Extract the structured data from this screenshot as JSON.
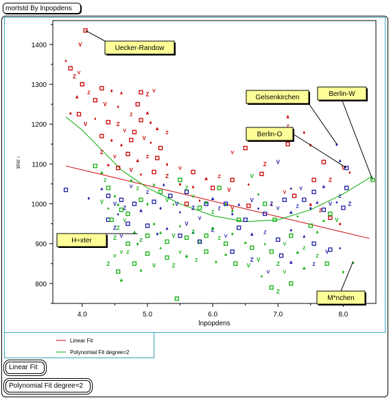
{
  "title": "mortstd By lnpopdens",
  "buttons": {
    "linear": "Linear Fit",
    "poly": "Polynomial Fit degree=2"
  },
  "colors": {
    "frame": "#35a6c0",
    "linear": "#cc0000",
    "poly": "#00aa00",
    "red": "#cc0000",
    "blue": "#1a1aa6",
    "green": "#10b010",
    "label_bg": "#ffff99"
  },
  "chart_data": {
    "type": "scatter",
    "title": "",
    "xlabel": "lnpopdens",
    "ylabel": "↑ mst",
    "xlim": [
      3.55,
      8.5
    ],
    "ylim": [
      750,
      1460
    ],
    "xticks": [
      4.0,
      5.0,
      6.0,
      7.0,
      8.0
    ],
    "xtick_labels": [
      "4.0",
      "5.0",
      "6.0",
      "7.0",
      "8.0"
    ],
    "yticks": [
      800,
      900,
      1000,
      1100,
      1200,
      1300,
      1400
    ],
    "ytick_labels": [
      "800",
      "900",
      "1000",
      "1100",
      "1200",
      "1300",
      "1400"
    ],
    "grid": false,
    "legend": "bottom-left",
    "legend_entries": [
      {
        "name": "Linear Fit",
        "color": "#cc0000"
      },
      {
        "name": "Polynomial Fit degree=2",
        "color": "#00aa00"
      }
    ],
    "fits": [
      {
        "name": "Linear Fit",
        "points": [
          [
            3.75,
            1095
          ],
          [
            8.4,
            913
          ]
        ]
      },
      {
        "name": "Polynomial Fit degree=2",
        "points": [
          [
            3.75,
            1218
          ],
          [
            4.0,
            1185
          ],
          [
            4.3,
            1135
          ],
          [
            4.6,
            1085
          ],
          [
            5.0,
            1040
          ],
          [
            5.5,
            1000
          ],
          [
            6.0,
            970
          ],
          [
            6.5,
            955
          ],
          [
            7.0,
            960
          ],
          [
            7.5,
            985
          ],
          [
            8.0,
            1025
          ],
          [
            8.45,
            1070
          ]
        ]
      }
    ],
    "series": [
      {
        "name": "",
        "color": "#cc0000",
        "points": [
          [
            4.05,
            1435
          ],
          [
            3.97,
            1400
          ],
          [
            3.75,
            1360
          ],
          [
            3.82,
            1340
          ],
          [
            3.88,
            1320
          ],
          [
            3.95,
            1330
          ],
          [
            4.0,
            1300
          ],
          [
            3.92,
            1270
          ],
          [
            4.1,
            1280
          ],
          [
            4.3,
            1290
          ],
          [
            4.45,
            1285
          ],
          [
            4.6,
            1280
          ],
          [
            4.2,
            1260
          ],
          [
            4.35,
            1250
          ],
          [
            4.55,
            1245
          ],
          [
            4.9,
            1280
          ],
          [
            5.0,
            1275
          ],
          [
            5.1,
            1285
          ],
          [
            4.85,
            1250
          ],
          [
            5.0,
            1230
          ],
          [
            4.75,
            1225
          ],
          [
            4.9,
            1210
          ],
          [
            5.05,
            1205
          ],
          [
            3.82,
            1230
          ],
          [
            3.95,
            1225
          ],
          [
            4.05,
            1200
          ],
          [
            4.2,
            1215
          ],
          [
            4.4,
            1205
          ],
          [
            4.55,
            1200
          ],
          [
            4.65,
            1185
          ],
          [
            4.8,
            1180
          ],
          [
            5.15,
            1190
          ],
          [
            5.3,
            1180
          ],
          [
            4.3,
            1170
          ],
          [
            4.45,
            1160
          ],
          [
            4.6,
            1150
          ],
          [
            4.75,
            1160
          ],
          [
            4.95,
            1165
          ],
          [
            5.05,
            1155
          ],
          [
            5.2,
            1140
          ],
          [
            4.3,
            1130
          ],
          [
            4.5,
            1120
          ],
          [
            4.7,
            1125
          ],
          [
            4.85,
            1110
          ],
          [
            5.0,
            1120
          ],
          [
            5.15,
            1115
          ],
          [
            5.3,
            1100
          ],
          [
            4.4,
            1100
          ],
          [
            4.55,
            1090
          ],
          [
            4.75,
            1085
          ],
          [
            4.9,
            1075
          ],
          [
            5.1,
            1080
          ],
          [
            5.3,
            1070
          ],
          [
            5.5,
            1090
          ],
          [
            5.7,
            1080
          ],
          [
            5.9,
            1065
          ],
          [
            6.1,
            1070
          ],
          [
            6.3,
            1060
          ],
          [
            5.5,
            1050
          ],
          [
            5.7,
            1045
          ],
          [
            6.0,
            1040
          ],
          [
            6.25,
            1035
          ],
          [
            6.55,
            1050
          ],
          [
            6.75,
            1075
          ],
          [
            6.8,
            1100
          ],
          [
            6.3,
            1130
          ],
          [
            6.5,
            1140
          ],
          [
            7.15,
            1220
          ],
          [
            7.15,
            1195
          ],
          [
            7.15,
            1150
          ],
          [
            7.4,
            1180
          ],
          [
            7.5,
            1150
          ],
          [
            7.7,
            1105
          ],
          [
            8.0,
            1090
          ],
          [
            8.1,
            1080
          ],
          [
            7.55,
            1060
          ],
          [
            7.8,
            1060
          ],
          [
            7.1,
            1030
          ],
          [
            7.25,
            1020
          ],
          [
            7.5,
            1000
          ],
          [
            7.65,
            985
          ],
          [
            7.8,
            965
          ],
          [
            7.95,
            950
          ],
          [
            6.9,
            1000
          ],
          [
            6.55,
            995
          ],
          [
            6.3,
            990
          ],
          [
            5.8,
            1010
          ],
          [
            5.6,
            1000
          ]
        ]
      },
      {
        "name": "",
        "color": "#1a1aa6",
        "points": [
          [
            3.75,
            1035
          ],
          [
            4.1,
            1015
          ],
          [
            4.3,
            1040
          ],
          [
            4.4,
            1020
          ],
          [
            4.5,
            1000
          ],
          [
            4.55,
            975
          ],
          [
            4.6,
            1010
          ],
          [
            4.65,
            990
          ],
          [
            4.75,
            1045
          ],
          [
            4.8,
            1000
          ],
          [
            4.9,
            985
          ],
          [
            5.0,
            1030
          ],
          [
            5.1,
            1005
          ],
          [
            5.2,
            990
          ],
          [
            5.25,
            1050
          ],
          [
            5.35,
            1020
          ],
          [
            5.45,
            1000
          ],
          [
            5.5,
            980
          ],
          [
            5.6,
            1030
          ],
          [
            5.7,
            990
          ],
          [
            5.8,
            965
          ],
          [
            5.9,
            1000
          ],
          [
            6.0,
            1015
          ],
          [
            6.1,
            990
          ],
          [
            6.2,
            1000
          ],
          [
            6.3,
            975
          ],
          [
            6.4,
            1000
          ],
          [
            6.5,
            960
          ],
          [
            6.6,
            1010
          ],
          [
            6.7,
            990
          ],
          [
            6.8,
            975
          ],
          [
            6.9,
            1000
          ],
          [
            7.0,
            990
          ],
          [
            7.1,
            1010
          ],
          [
            7.2,
            980
          ],
          [
            7.3,
            995
          ],
          [
            7.4,
            1010
          ],
          [
            7.5,
            990
          ],
          [
            7.6,
            1005
          ],
          [
            7.7,
            985
          ],
          [
            7.8,
            1000
          ],
          [
            7.9,
            1005
          ],
          [
            8.0,
            990
          ],
          [
            8.1,
            1000
          ],
          [
            7.35,
            1040
          ],
          [
            7.55,
            1030
          ],
          [
            7.7,
            1045
          ],
          [
            7.95,
            1020
          ],
          [
            8.05,
            1040
          ],
          [
            7.9,
            1150
          ],
          [
            7.95,
            1110
          ],
          [
            8.05,
            1090
          ],
          [
            7.0,
            1105
          ],
          [
            7.2,
            1040
          ],
          [
            4.4,
            960
          ],
          [
            4.5,
            940
          ],
          [
            4.6,
            920
          ],
          [
            4.7,
            950
          ],
          [
            4.8,
            930
          ],
          [
            4.9,
            910
          ],
          [
            5.0,
            945
          ],
          [
            5.15,
            925
          ],
          [
            5.3,
            940
          ],
          [
            5.5,
            920
          ],
          [
            5.6,
            950
          ],
          [
            5.7,
            930
          ],
          [
            5.8,
            905
          ],
          [
            6.0,
            935
          ],
          [
            6.2,
            920
          ],
          [
            6.4,
            940
          ],
          [
            6.6,
            925
          ],
          [
            6.8,
            930
          ],
          [
            7.0,
            910
          ],
          [
            7.2,
            935
          ],
          [
            7.4,
            920
          ],
          [
            7.55,
            900
          ],
          [
            7.75,
            880
          ],
          [
            7.95,
            890
          ],
          [
            6.3,
            880
          ],
          [
            6.6,
            860
          ],
          [
            6.85,
            830
          ],
          [
            7.05,
            870
          ],
          [
            7.2,
            855
          ],
          [
            7.55,
            850
          ],
          [
            7.8,
            885
          ]
        ]
      },
      {
        "name": "",
        "color": "#10b010",
        "points": [
          [
            4.2,
            1095
          ],
          [
            4.3,
            1080
          ],
          [
            4.35,
            1060
          ],
          [
            4.4,
            1040
          ],
          [
            4.5,
            1020
          ],
          [
            4.55,
            1000
          ],
          [
            4.6,
            985
          ],
          [
            4.3,
            1005
          ],
          [
            4.4,
            990
          ],
          [
            4.45,
            960
          ],
          [
            4.55,
            940
          ],
          [
            4.65,
            960
          ],
          [
            4.7,
            975
          ],
          [
            4.75,
            1060
          ],
          [
            4.85,
            1040
          ],
          [
            4.9,
            1010
          ],
          [
            5.0,
            1000
          ],
          [
            5.1,
            1050
          ],
          [
            5.2,
            1030
          ],
          [
            5.3,
            1010
          ],
          [
            5.4,
            1000
          ],
          [
            5.5,
            1060
          ],
          [
            5.6,
            1040
          ],
          [
            5.7,
            1020
          ],
          [
            5.8,
            990
          ],
          [
            5.9,
            1005
          ],
          [
            6.0,
            980
          ],
          [
            6.1,
            1040
          ],
          [
            6.2,
            1000
          ],
          [
            6.3,
            985
          ],
          [
            6.4,
            960
          ],
          [
            6.6,
            1070
          ],
          [
            6.7,
            1025
          ],
          [
            6.8,
            1000
          ],
          [
            4.5,
            915
          ],
          [
            4.6,
            880
          ],
          [
            4.7,
            900
          ],
          [
            4.8,
            930
          ],
          [
            4.9,
            910
          ],
          [
            5.0,
            920
          ],
          [
            5.1,
            950
          ],
          [
            5.2,
            930
          ],
          [
            5.3,
            905
          ],
          [
            5.4,
            920
          ],
          [
            5.5,
            945
          ],
          [
            5.6,
            915
          ],
          [
            5.7,
            930
          ],
          [
            5.8,
            905
          ],
          [
            5.9,
            920
          ],
          [
            6.0,
            940
          ],
          [
            6.1,
            915
          ],
          [
            6.2,
            900
          ],
          [
            6.3,
            925
          ],
          [
            6.5,
            905
          ],
          [
            6.6,
            890
          ],
          [
            6.7,
            860
          ],
          [
            6.8,
            900
          ],
          [
            6.9,
            880
          ],
          [
            7.0,
            850
          ],
          [
            7.1,
            900
          ],
          [
            7.2,
            920
          ],
          [
            7.3,
            880
          ],
          [
            7.4,
            890
          ],
          [
            7.5,
            945
          ],
          [
            7.6,
            930
          ],
          [
            7.7,
            960
          ],
          [
            7.8,
            975
          ],
          [
            7.9,
            960
          ],
          [
            7.3,
            970
          ],
          [
            6.95,
            960
          ],
          [
            4.4,
            850
          ],
          [
            4.5,
            870
          ],
          [
            4.55,
            830
          ],
          [
            4.6,
            810
          ],
          [
            4.7,
            880
          ],
          [
            4.8,
            850
          ],
          [
            4.85,
            900
          ],
          [
            4.9,
            835
          ],
          [
            5.0,
            875
          ],
          [
            5.1,
            845
          ],
          [
            5.2,
            890
          ],
          [
            5.3,
            865
          ],
          [
            5.4,
            845
          ],
          [
            5.5,
            880
          ],
          [
            5.45,
            762
          ],
          [
            5.6,
            870
          ],
          [
            5.75,
            860
          ],
          [
            5.9,
            880
          ],
          [
            6.05,
            855
          ],
          [
            6.2,
            875
          ],
          [
            6.35,
            850
          ],
          [
            6.55,
            845
          ],
          [
            6.75,
            820
          ],
          [
            6.9,
            790
          ],
          [
            7.0,
            780
          ],
          [
            7.1,
            830
          ],
          [
            7.2,
            800
          ],
          [
            7.4,
            840
          ],
          [
            7.6,
            870
          ],
          [
            7.75,
            850
          ],
          [
            8.0,
            830
          ],
          [
            8.15,
            855
          ],
          [
            8.45,
            1060
          ]
        ]
      }
    ],
    "annotations": [
      {
        "text": "Uecker-Randow",
        "x": 4.05,
        "y": 1435
      },
      {
        "text": "Gelsenkirchen",
        "x": 7.9,
        "y": 1150
      },
      {
        "text": "Berlin-W",
        "x": 8.45,
        "y": 1060
      },
      {
        "text": "Berlin-O",
        "x": 8.05,
        "y": 1090
      },
      {
        "text": "H÷xter",
        "x": 4.85,
        "y": 925
      },
      {
        "text": "M*nchen",
        "x": 8.15,
        "y": 855
      }
    ]
  }
}
